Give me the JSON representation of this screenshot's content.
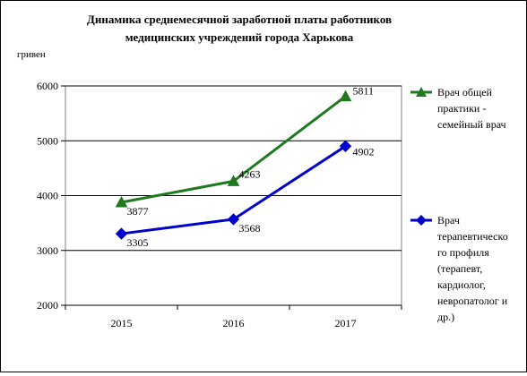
{
  "chart_data": {
    "type": "line",
    "title_lines": [
      "Динамика среднемесячной заработной платы работников",
      "медицинских учреждений города Харькова"
    ],
    "ylabel": "гривен",
    "xlabel": "",
    "categories": [
      "2015",
      "2016",
      "2017"
    ],
    "ylim": [
      2000,
      6000
    ],
    "yticks": [
      "2000",
      "3000",
      "4000",
      "5000",
      "6000"
    ],
    "grid": "horizontal",
    "legend_position": "right",
    "series": [
      {
        "name_lines": [
          "Врач общей",
          "практики -",
          "семейный врач"
        ],
        "values": [
          3877,
          4263,
          5811
        ],
        "labels": [
          "3877",
          "4263",
          "5811"
        ],
        "color": "#1f7a1f",
        "marker": "triangle"
      },
      {
        "name_lines": [
          "Врач",
          "терапевтическо",
          "го профиля",
          "(терапевт,",
          "кардиолог,",
          "невропатолог и",
          "др.)"
        ],
        "values": [
          3305,
          3568,
          4902
        ],
        "labels": [
          "3305",
          "3568",
          "4902"
        ],
        "color": "#0000cc",
        "marker": "diamond"
      }
    ]
  }
}
